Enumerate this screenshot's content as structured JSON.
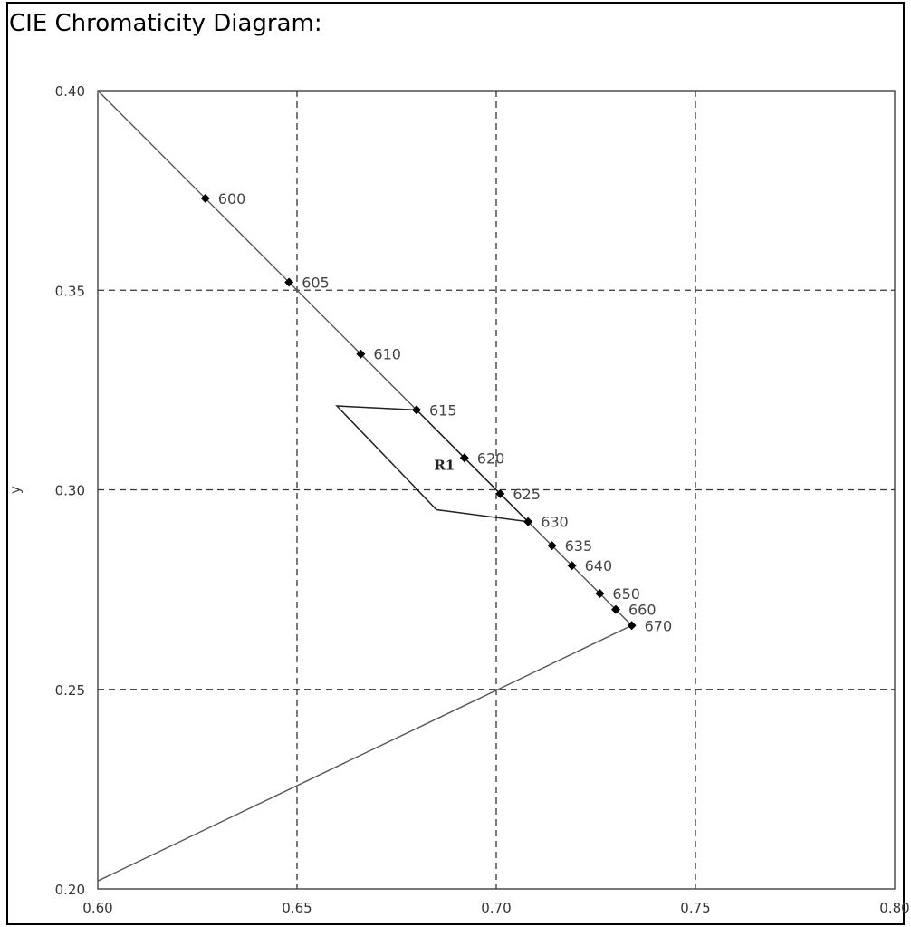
{
  "title": "CIE Chromaticity Diagram:",
  "chart_data": {
    "type": "line",
    "title": "CIE Chromaticity Diagram:",
    "xlabel": "",
    "ylabel": "y",
    "xlim": [
      0.6,
      0.8
    ],
    "ylim": [
      0.2,
      0.4
    ],
    "grid": true,
    "grid_style": "dashed",
    "x_ticks": [
      "0.60",
      "0.65",
      "0.70",
      "0.75",
      "0.80"
    ],
    "y_ticks": [
      "0.40",
      "0.35",
      "0.30",
      "0.25",
      "0.20"
    ],
    "spectral_locus": [
      {
        "x": 0.6,
        "y": 0.4
      },
      {
        "x": 0.627,
        "y": 0.373
      },
      {
        "x": 0.648,
        "y": 0.352
      },
      {
        "x": 0.666,
        "y": 0.334
      },
      {
        "x": 0.68,
        "y": 0.32
      },
      {
        "x": 0.692,
        "y": 0.308
      },
      {
        "x": 0.701,
        "y": 0.299
      },
      {
        "x": 0.708,
        "y": 0.292
      },
      {
        "x": 0.714,
        "y": 0.286
      },
      {
        "x": 0.719,
        "y": 0.281
      },
      {
        "x": 0.726,
        "y": 0.274
      },
      {
        "x": 0.73,
        "y": 0.27
      },
      {
        "x": 0.734,
        "y": 0.266
      }
    ],
    "purple_line": [
      {
        "x": 0.734,
        "y": 0.266
      },
      {
        "x": 0.6,
        "y": 0.202
      }
    ],
    "wavelength_points": [
      {
        "label": "600",
        "x": 0.627,
        "y": 0.373
      },
      {
        "label": "605",
        "x": 0.648,
        "y": 0.352
      },
      {
        "label": "610",
        "x": 0.666,
        "y": 0.334
      },
      {
        "label": "615",
        "x": 0.68,
        "y": 0.32
      },
      {
        "label": "620",
        "x": 0.692,
        "y": 0.308
      },
      {
        "label": "625",
        "x": 0.701,
        "y": 0.299
      },
      {
        "label": "630",
        "x": 0.708,
        "y": 0.292
      },
      {
        "label": "635",
        "x": 0.714,
        "y": 0.286
      },
      {
        "label": "640",
        "x": 0.719,
        "y": 0.281
      },
      {
        "label": "650",
        "x": 0.726,
        "y": 0.274
      },
      {
        "label": "660",
        "x": 0.73,
        "y": 0.27
      },
      {
        "label": "670",
        "x": 0.734,
        "y": 0.266
      }
    ],
    "region": {
      "label": "R1",
      "polygon": [
        {
          "x": 0.68,
          "y": 0.32
        },
        {
          "x": 0.66,
          "y": 0.321
        },
        {
          "x": 0.685,
          "y": 0.295
        },
        {
          "x": 0.708,
          "y": 0.292
        },
        {
          "x": 0.701,
          "y": 0.299
        }
      ],
      "label_at": {
        "x": 0.687,
        "y": 0.305
      }
    }
  }
}
